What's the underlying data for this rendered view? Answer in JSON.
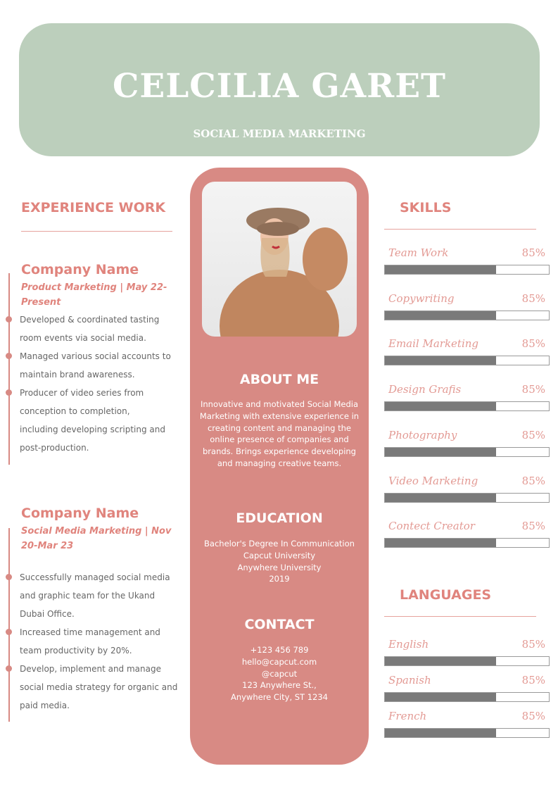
{
  "header": {
    "name": "CELCILIA GARET",
    "role": "SOCIAL MEDIA MARKETING"
  },
  "colors": {
    "header_bg": "#bccfbc",
    "accent": "#d88a84",
    "heading": "#e0847d",
    "bar": "#7a7a7a"
  },
  "experience": {
    "title": "EXPERIENCE WORK",
    "jobs": [
      {
        "company": "Company Name",
        "subtitle": "Product Marketing | May 22-Present",
        "bullets": [
          "Developed & coordinated tasting room events via social media.",
          "Managed various social accounts to maintain brand awareness.",
          "Producer of video series from conception to completion, including developing scripting and post-production."
        ]
      },
      {
        "company": "Company Name",
        "subtitle": "Social Media Marketing | Nov 20-Mar 23",
        "bullets": [
          "Successfully managed social media and graphic team for the Ukand Dubai Office.",
          "Increased time management and team productivity by 20%.",
          "Develop, implement and manage social media strategy for organic and paid media."
        ]
      }
    ]
  },
  "about": {
    "title": "ABOUT ME",
    "text": "Innovative and motivated Social Media Marketing with extensive experience in creating content and managing the online presence of companies and brands. Brings experience developing and managing creative teams."
  },
  "education": {
    "title": "EDUCATION",
    "lines": [
      "Bachelor's Degree In Communication",
      "Capcut University",
      "Anywhere University",
      "2019"
    ]
  },
  "contact": {
    "title": "CONTACT",
    "lines": [
      "+123  456 789",
      "hello@capcut.com",
      "@capcut",
      "123 Anywhere St.,",
      "Anywhere City, ST 1234"
    ]
  },
  "skills": {
    "title": "SKILLS",
    "items": [
      {
        "label": "Team Work",
        "value": "85%",
        "fill": 0.68
      },
      {
        "label": "Copywriting",
        "value": "85%",
        "fill": 0.68
      },
      {
        "label": "Email Marketing",
        "value": "85%",
        "fill": 0.68
      },
      {
        "label": "Design Grafis",
        "value": "85%",
        "fill": 0.68
      },
      {
        "label": "Photography",
        "value": "85%",
        "fill": 0.68
      },
      {
        "label": "Video Marketing",
        "value": "85%",
        "fill": 0.68
      },
      {
        "label": "Contect Creator",
        "value": "85%",
        "fill": 0.68
      }
    ]
  },
  "languages": {
    "title": "LANGUAGES",
    "items": [
      {
        "label": "English",
        "value": "85%",
        "fill": 0.68
      },
      {
        "label": "Spanish",
        "value": "85%",
        "fill": 0.68
      },
      {
        "label": "French",
        "value": "85%",
        "fill": 0.68
      }
    ]
  }
}
